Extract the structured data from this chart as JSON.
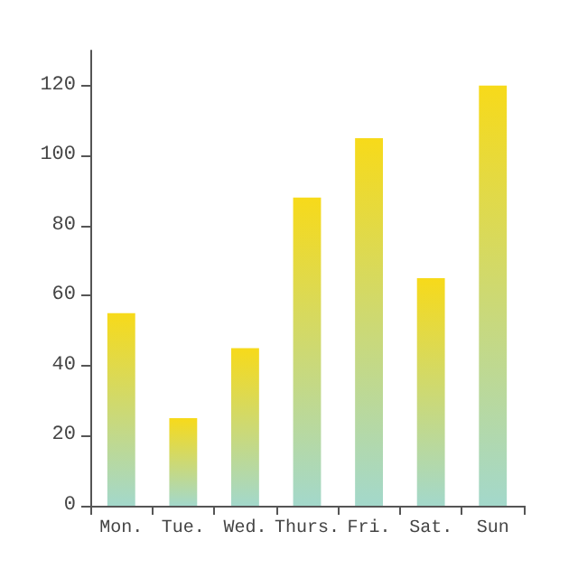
{
  "chart_data": {
    "type": "bar",
    "categories": [
      "Mon.",
      "Tue.",
      "Wed.",
      "Thurs.",
      "Fri.",
      "Sat.",
      "Sun"
    ],
    "values": [
      55,
      25,
      45,
      88,
      105,
      65,
      120
    ],
    "color": "#f7da1a",
    "ylim": [
      0,
      130
    ],
    "yticks": [
      0,
      20,
      40,
      60,
      80,
      100,
      120
    ],
    "grid": false
  }
}
